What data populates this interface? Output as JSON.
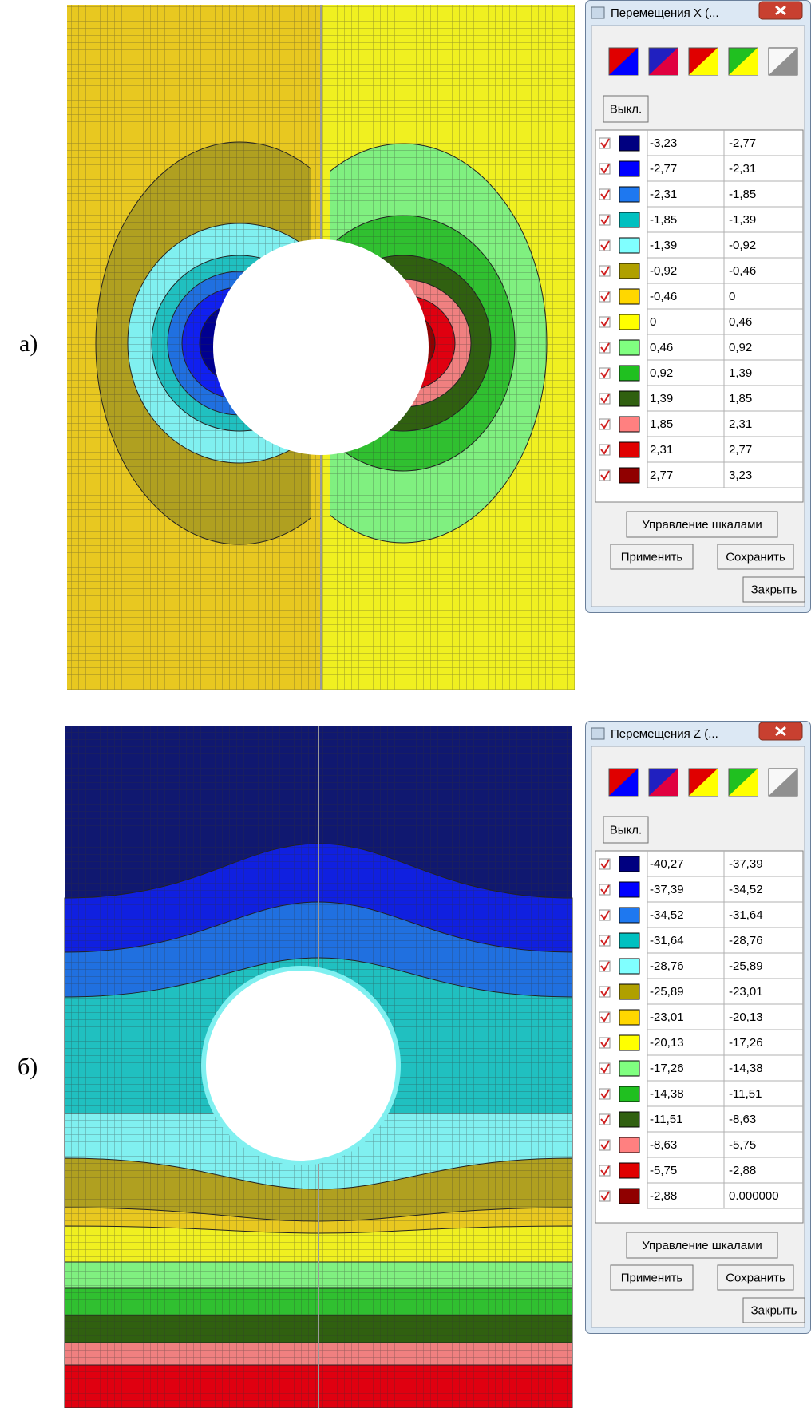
{
  "panels": [
    {
      "label": "а)",
      "dialog": {
        "title": "Перемещения X (...",
        "off_button": "Выкл.",
        "rows": [
          {
            "from": "-3,23",
            "to": "-2,77"
          },
          {
            "from": "-2,77",
            "to": "-2,31"
          },
          {
            "from": "-2,31",
            "to": "-1,85"
          },
          {
            "from": "-1,85",
            "to": "-1,39"
          },
          {
            "from": "-1,39",
            "to": "-0,92"
          },
          {
            "from": "-0,92",
            "to": "-0,46"
          },
          {
            "from": "-0,46",
            "to": "0"
          },
          {
            "from": "0",
            "to": "0,46"
          },
          {
            "from": "0,46",
            "to": "0,92"
          },
          {
            "from": "0,92",
            "to": "1,39"
          },
          {
            "from": "1,39",
            "to": "1,85"
          },
          {
            "from": "1,85",
            "to": "2,31"
          },
          {
            "from": "2,31",
            "to": "2,77"
          },
          {
            "from": "2,77",
            "to": "3,23"
          }
        ],
        "buttons": {
          "scales": "Управление шкалами",
          "apply": "Применить",
          "save": "Сохранить",
          "close": "Закрыть"
        }
      }
    },
    {
      "label": "б)",
      "dialog": {
        "title": "Перемещения Z (...",
        "off_button": "Выкл.",
        "rows": [
          {
            "from": "-40,27",
            "to": "-37,39"
          },
          {
            "from": "-37,39",
            "to": "-34,52"
          },
          {
            "from": "-34,52",
            "to": "-31,64"
          },
          {
            "from": "-31,64",
            "to": "-28,76"
          },
          {
            "from": "-28,76",
            "to": "-25,89"
          },
          {
            "from": "-25,89",
            "to": "-23,01"
          },
          {
            "from": "-23,01",
            "to": "-20,13"
          },
          {
            "from": "-20,13",
            "to": "-17,26"
          },
          {
            "from": "-17,26",
            "to": "-14,38"
          },
          {
            "from": "-14,38",
            "to": "-11,51"
          },
          {
            "from": "-11,51",
            "to": "-8,63"
          },
          {
            "from": "-8,63",
            "to": "-5,75"
          },
          {
            "from": "-5,75",
            "to": "-2,88"
          },
          {
            "from": "-2,88",
            "to": "0.000000"
          }
        ],
        "buttons": {
          "scales": "Управление шкалами",
          "apply": "Применить",
          "save": "Сохранить",
          "close": "Закрыть"
        }
      }
    }
  ],
  "legend_colors": [
    "#000080",
    "#0000ff",
    "#1e78f0",
    "#00c0c0",
    "#80ffff",
    "#b0a000",
    "#ffd700",
    "#ffff00",
    "#80ff80",
    "#20c020",
    "#306010",
    "#ff8080",
    "#e00000",
    "#900000"
  ]
}
